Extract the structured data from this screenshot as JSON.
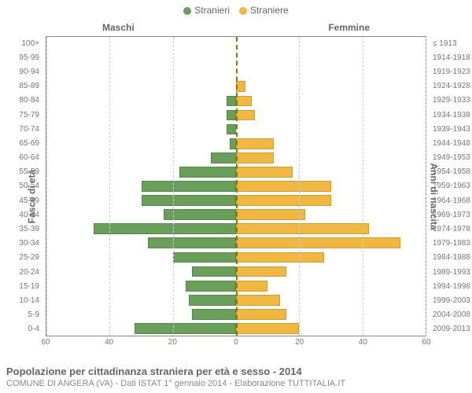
{
  "chart": {
    "type": "population-pyramid",
    "background_color": "#ffffff",
    "border_color": "#888888",
    "grid_color": "#cccccc",
    "center_line_color": "#8b7500",
    "font_family": "Arial",
    "tick_color": "#777777",
    "header_color": "#666666",
    "legend": [
      {
        "label": "Stranieri",
        "color": "#6a9e5b"
      },
      {
        "label": "Straniere",
        "color": "#f0b840"
      }
    ],
    "column_headers": {
      "left": "Maschi",
      "right": "Femmine"
    },
    "left_axis_title": "Fasce di età",
    "right_axis_title": "Anni di nascita",
    "x_axis": {
      "max": 60,
      "ticks_left": [
        60,
        40,
        20,
        0
      ],
      "ticks_right": [
        0,
        20,
        40,
        60
      ]
    },
    "age_labels": [
      "100+",
      "95-99",
      "90-94",
      "85-89",
      "80-84",
      "75-79",
      "70-74",
      "65-69",
      "60-64",
      "55-59",
      "50-54",
      "45-49",
      "40-44",
      "35-39",
      "30-34",
      "25-29",
      "20-24",
      "15-19",
      "10-14",
      "5-9",
      "0-4"
    ],
    "birth_labels": [
      "≤ 1913",
      "1914-1918",
      "1919-1923",
      "1924-1928",
      "1929-1933",
      "1934-1938",
      "1939-1943",
      "1944-1948",
      "1949-1953",
      "1954-1958",
      "1959-1963",
      "1964-1968",
      "1969-1973",
      "1974-1978",
      "1979-1983",
      "1984-1988",
      "1989-1993",
      "1994-1998",
      "1999-2003",
      "2004-2008",
      "2009-2013"
    ],
    "male_values": [
      0,
      0,
      0,
      0,
      3,
      3,
      3,
      2,
      8,
      18,
      30,
      30,
      23,
      45,
      28,
      20,
      14,
      16,
      15,
      14,
      32
    ],
    "female_values": [
      0,
      0,
      0,
      3,
      5,
      6,
      0,
      12,
      12,
      18,
      30,
      30,
      22,
      42,
      52,
      28,
      16,
      10,
      14,
      16,
      20
    ],
    "male_color": "#6a9e5b",
    "female_color": "#f0b840",
    "footer_title": "Popolazione per cittadinanza straniera per età e sesso - 2014",
    "footer_sub": "COMUNE DI ANGERA (VA) - Dati ISTAT 1° gennaio 2014 - Elaborazione TUTTITALIA.IT"
  }
}
